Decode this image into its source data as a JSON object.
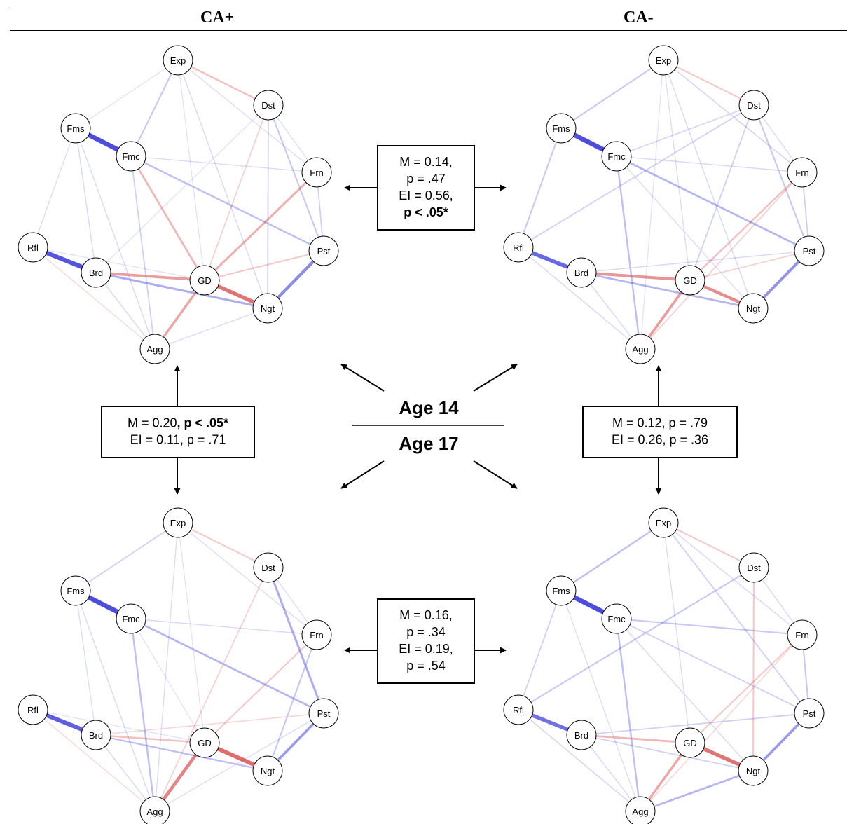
{
  "header": {
    "left": "CA+",
    "right": "CA-"
  },
  "center": {
    "top": "Age 14",
    "bottom": "Age 17"
  },
  "nodes": [
    "Exp",
    "Dst",
    "Frn",
    "Pst",
    "Ngt",
    "Agg",
    "Brd",
    "Rfl",
    "Fms",
    "Fmc",
    "GD"
  ],
  "colors": {
    "positive": "#2b2bd6",
    "negative": "#d03030"
  },
  "boxes": {
    "top": {
      "lines": [
        [
          {
            "t": "M = 0.14,",
            "b": false
          }
        ],
        [
          {
            "t": "p = .47",
            "b": false
          }
        ],
        [
          {
            "t": "EI = 0.56,",
            "b": false
          }
        ],
        [
          {
            "t": "p < .05*",
            "b": true
          }
        ]
      ]
    },
    "left": {
      "lines": [
        [
          {
            "t": "M = 0.20",
            "b": false
          },
          {
            "t": ", p < .05*",
            "b": true
          }
        ],
        [
          {
            "t": "EI = 0.11, p = .71",
            "b": false
          }
        ]
      ]
    },
    "right": {
      "lines": [
        [
          {
            "t": "M = 0.12, p = .79",
            "b": false
          }
        ],
        [
          {
            "t": "EI = 0.26, p = .36",
            "b": false
          }
        ]
      ]
    },
    "bottom": {
      "lines": [
        [
          {
            "t": "M = 0.16,",
            "b": false
          }
        ],
        [
          {
            "t": "p = .34",
            "b": false
          }
        ],
        [
          {
            "t": "EI = 0.19,",
            "b": false
          }
        ],
        [
          {
            "t": "p = .54",
            "b": false
          }
        ]
      ]
    }
  },
  "networks": [
    {
      "id": "ca-plus-age14",
      "edges": [
        [
          "Fms",
          "Fmc",
          0.9
        ],
        [
          "Rfl",
          "Brd",
          0.85
        ],
        [
          "Pst",
          "Ngt",
          0.55
        ],
        [
          "GD",
          "Ngt",
          -0.7
        ],
        [
          "Brd",
          "GD",
          -0.45
        ],
        [
          "GD",
          "Agg",
          -0.4
        ],
        [
          "GD",
          "Frn",
          -0.35
        ],
        [
          "Brd",
          "Ngt",
          0.35
        ],
        [
          "Fmc",
          "GD",
          -0.3
        ],
        [
          "Exp",
          "Dst",
          -0.25
        ],
        [
          "Fmc",
          "Pst",
          0.25
        ],
        [
          "Exp",
          "Fmc",
          0.2
        ],
        [
          "Dst",
          "Pst",
          0.2
        ],
        [
          "Frn",
          "Pst",
          0.15
        ],
        [
          "GD",
          "Pst",
          -0.2
        ],
        [
          "Dst",
          "Ngt",
          0.15
        ],
        [
          "Dst",
          "GD",
          -0.15
        ],
        [
          "Fms",
          "Brd",
          0.1
        ],
        [
          "Brd",
          "Agg",
          0.1
        ],
        [
          "Rfl",
          "Agg",
          -0.1
        ],
        [
          "Fmc",
          "Agg",
          0.15
        ],
        [
          "Exp",
          "Ngt",
          0.1
        ],
        [
          "Fms",
          "Agg",
          0.1
        ],
        [
          "Exp",
          "Frn",
          0.08
        ],
        [
          "Fms",
          "Rfl",
          0.08
        ],
        [
          "Dst",
          "Frn",
          0.08
        ],
        [
          "Fmc",
          "Frn",
          0.08
        ],
        [
          "Agg",
          "Ngt",
          0.08
        ],
        [
          "Exp",
          "Fms",
          0.06
        ],
        [
          "Rfl",
          "GD",
          0.06
        ],
        [
          "Exp",
          "GD",
          0.06
        ],
        [
          "Dst",
          "Brd",
          0.06
        ]
      ]
    },
    {
      "id": "ca-minus-age14",
      "edges": [
        [
          "Fms",
          "Fmc",
          0.9
        ],
        [
          "Rfl",
          "Brd",
          0.75
        ],
        [
          "Pst",
          "Ngt",
          0.5
        ],
        [
          "Brd",
          "GD",
          -0.5
        ],
        [
          "GD",
          "Ngt",
          -0.55
        ],
        [
          "GD",
          "Agg",
          -0.45
        ],
        [
          "Brd",
          "Ngt",
          0.3
        ],
        [
          "Fmc",
          "Pst",
          0.3
        ],
        [
          "Fms",
          "Rfl",
          0.2
        ],
        [
          "Fmc",
          "Agg",
          0.25
        ],
        [
          "GD",
          "Frn",
          -0.25
        ],
        [
          "Exp",
          "Dst",
          -0.2
        ],
        [
          "Exp",
          "Fms",
          0.2
        ],
        [
          "Dst",
          "Pst",
          0.2
        ],
        [
          "Frn",
          "Pst",
          0.15
        ],
        [
          "Rfl",
          "Dst",
          0.15
        ],
        [
          "Dst",
          "GD",
          0.15
        ],
        [
          "Exp",
          "Frn",
          0.12
        ],
        [
          "Fmc",
          "Dst",
          0.12
        ],
        [
          "Agg",
          "Frn",
          -0.15
        ],
        [
          "GD",
          "Pst",
          -0.15
        ],
        [
          "Dst",
          "Frn",
          0.1
        ],
        [
          "Fmc",
          "Frn",
          0.1
        ],
        [
          "Exp",
          "Ngt",
          0.1
        ],
        [
          "Brd",
          "Pst",
          0.1
        ],
        [
          "Rfl",
          "Agg",
          0.1
        ],
        [
          "Brd",
          "Agg",
          0.1
        ],
        [
          "Exp",
          "GD",
          0.08
        ],
        [
          "Fmc",
          "Ngt",
          0.08
        ],
        [
          "Exp",
          "Agg",
          0.06
        ]
      ]
    },
    {
      "id": "ca-plus-age17",
      "edges": [
        [
          "Fms",
          "Fmc",
          0.9
        ],
        [
          "Rfl",
          "Brd",
          0.8
        ],
        [
          "GD",
          "Ngt",
          -0.75
        ],
        [
          "GD",
          "Agg",
          -0.6
        ],
        [
          "Pst",
          "Ngt",
          0.45
        ],
        [
          "Dst",
          "Pst",
          0.35
        ],
        [
          "Fmc",
          "Pst",
          0.3
        ],
        [
          "Brd",
          "GD",
          -0.25
        ],
        [
          "Fmc",
          "Agg",
          0.25
        ],
        [
          "Brd",
          "Ngt",
          0.25
        ],
        [
          "GD",
          "Frn",
          -0.2
        ],
        [
          "Exp",
          "Dst",
          -0.2
        ],
        [
          "Exp",
          "Fms",
          0.15
        ],
        [
          "Frn",
          "Ngt",
          0.2
        ],
        [
          "Dst",
          "Agg",
          -0.15
        ],
        [
          "Brd",
          "Pst",
          -0.12
        ],
        [
          "Fms",
          "Agg",
          0.1
        ],
        [
          "Rfl",
          "Agg",
          -0.1
        ],
        [
          "Exp",
          "Agg",
          0.08
        ],
        [
          "Fmc",
          "Frn",
          0.1
        ],
        [
          "Exp",
          "Frn",
          0.08
        ],
        [
          "Dst",
          "Frn",
          0.08
        ],
        [
          "Fms",
          "Brd",
          0.08
        ],
        [
          "Brd",
          "Agg",
          0.1
        ],
        [
          "Agg",
          "Pst",
          0.08
        ],
        [
          "Exp",
          "GD",
          0.06
        ],
        [
          "Fmc",
          "GD",
          0.06
        ],
        [
          "Rfl",
          "GD",
          0.06
        ]
      ]
    },
    {
      "id": "ca-minus-age17",
      "edges": [
        [
          "Fms",
          "Fmc",
          0.9
        ],
        [
          "Rfl",
          "Brd",
          0.7
        ],
        [
          "GD",
          "Ngt",
          -0.7
        ],
        [
          "Pst",
          "Ngt",
          0.45
        ],
        [
          "GD",
          "Agg",
          -0.4
        ],
        [
          "Agg",
          "Ngt",
          0.3
        ],
        [
          "Exp",
          "Fms",
          0.25
        ],
        [
          "Brd",
          "GD",
          -0.3
        ],
        [
          "Fmc",
          "Agg",
          0.25
        ],
        [
          "Rfl",
          "Dst",
          0.2
        ],
        [
          "Exp",
          "Dst",
          -0.2
        ],
        [
          "Fmc",
          "Frn",
          0.2
        ],
        [
          "Dst",
          "Ngt",
          -0.2
        ],
        [
          "GD",
          "Frn",
          -0.2
        ],
        [
          "Frn",
          "Pst",
          0.2
        ],
        [
          "Brd",
          "Pst",
          0.15
        ],
        [
          "Fmc",
          "Pst",
          0.15
        ],
        [
          "Fms",
          "Rfl",
          0.15
        ],
        [
          "Exp",
          "Pst",
          0.15
        ],
        [
          "Brd",
          "Ngt",
          0.15
        ],
        [
          "Rfl",
          "Agg",
          0.12
        ],
        [
          "Dst",
          "Frn",
          0.1
        ],
        [
          "Fmc",
          "Ngt",
          0.1
        ],
        [
          "Exp",
          "Frn",
          0.1
        ],
        [
          "Brd",
          "Agg",
          0.1
        ],
        [
          "Agg",
          "Frn",
          -0.12
        ],
        [
          "Exp",
          "GD",
          0.08
        ],
        [
          "Fms",
          "Agg",
          0.08
        ]
      ]
    }
  ]
}
